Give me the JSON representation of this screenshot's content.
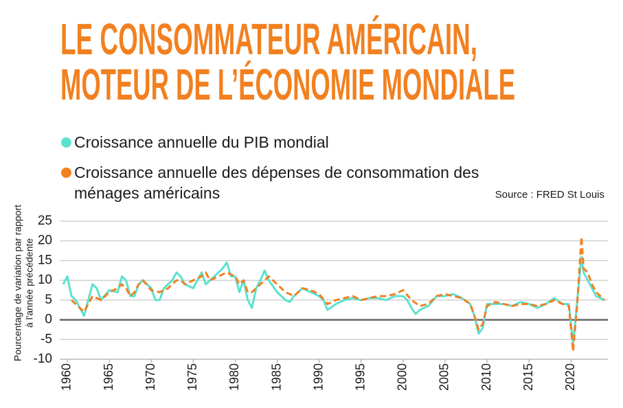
{
  "chart_data": {
    "type": "line",
    "title": [
      "LE CONSOMMATEUR AMÉRICAIN,",
      "MOTEUR DE L’ÉCONOMIE MONDIALE"
    ],
    "source": "Source : FRED St Louis",
    "ylabel": [
      "Pourcentage de variation par rapport",
      "à l'année précédente"
    ],
    "xlim": [
      1959.1,
      2024.4
    ],
    "xticks": [
      1960,
      1965,
      1970,
      1975,
      1980,
      1985,
      1990,
      1995,
      2000,
      2005,
      2010,
      2015,
      2020
    ],
    "ylim": [
      -10,
      25
    ],
    "yticks": [
      -10,
      -5,
      0,
      5,
      10,
      15,
      20,
      25
    ],
    "grid": true,
    "series": [
      {
        "name": "Croissance annuelle du PIB mondial",
        "color": "#5ce1cf",
        "style": "solid",
        "x": [
          1959.5,
          1960,
          1960.5,
          1961,
          1961.5,
          1962,
          1962.5,
          1963,
          1963.5,
          1964,
          1965,
          1966,
          1966.5,
          1967,
          1967.5,
          1968,
          1968.5,
          1969,
          1970,
          1970.5,
          1971,
          1971.5,
          1972,
          1972.5,
          1973,
          1973.5,
          1974,
          1975,
          1975.5,
          1976,
          1976.5,
          1977,
          1978,
          1978.5,
          1979,
          1979.5,
          1980,
          1980.5,
          1981,
          1981.5,
          1982,
          1982.5,
          1983,
          1983.5,
          1984,
          1985,
          1986,
          1986.5,
          1987,
          1988,
          1989,
          1990,
          1990.5,
          1991,
          1992,
          1993,
          1994,
          1995,
          1996,
          1997,
          1998,
          1999,
          2000,
          2000.5,
          2001,
          2001.5,
          2002,
          2003,
          2004,
          2005,
          2006,
          2007,
          2008,
          2008.5,
          2009,
          2009.5,
          2010,
          2011,
          2012,
          2013,
          2014,
          2015,
          2016,
          2017,
          2018,
          2019,
          2019.75,
          2020.25,
          2020.5,
          2020.75,
          2021.25,
          2021.5,
          2022,
          2022.5,
          2023,
          2023.5,
          2024
        ],
        "values": [
          9,
          11,
          6,
          5,
          3,
          1,
          5,
          9,
          8,
          5,
          7.5,
          7,
          11,
          10,
          6,
          6,
          9,
          10,
          8,
          5,
          5,
          8,
          9,
          10,
          12,
          11,
          9,
          8,
          10,
          12,
          9,
          10,
          12,
          13,
          14.5,
          11,
          11,
          7,
          10,
          5,
          3,
          8,
          10,
          12.5,
          10,
          7,
          5,
          4.5,
          6,
          8,
          7,
          6,
          5,
          2.5,
          4,
          5,
          5.5,
          5,
          5.5,
          5.5,
          5,
          6,
          6,
          5,
          3,
          1.5,
          2.5,
          3.5,
          6,
          6,
          6.5,
          5.5,
          4,
          1,
          -3.5,
          -2,
          4,
          4,
          4,
          3.5,
          4.5,
          4,
          3,
          4,
          5.5,
          4,
          4,
          -6,
          -1,
          5,
          16,
          12,
          10,
          8,
          6,
          5.5,
          5
        ]
      },
      {
        "name": "Croissance annuelle des dépenses de consommation des ménages américains",
        "color": "#f28020",
        "style": "dashed",
        "x": [
          1960.5,
          1961,
          1962,
          1962.5,
          1963,
          1964,
          1965,
          1966,
          1966.5,
          1967,
          1967.5,
          1968,
          1968.5,
          1969,
          1970,
          1971,
          1972,
          1973,
          1973.5,
          1974,
          1975,
          1976,
          1976.5,
          1977,
          1978,
          1979,
          1980,
          1980.5,
          1981,
          1981.5,
          1982,
          1983,
          1984,
          1985,
          1986,
          1987,
          1988,
          1989,
          1990,
          1991,
          1992,
          1993,
          1994,
          1995,
          1996,
          1997,
          1998,
          1999,
          2000,
          2001,
          2002,
          2003,
          2004,
          2005,
          2006,
          2007,
          2008,
          2008.5,
          2009,
          2009.5,
          2010,
          2011,
          2012,
          2013,
          2014,
          2015,
          2016,
          2017,
          2018,
          2019,
          2019.75,
          2020.25,
          2020.5,
          2020.75,
          2021.25,
          2021.5,
          2022,
          2022.5,
          2023,
          2023.5,
          2024
        ],
        "values": [
          5,
          4,
          2,
          4,
          6,
          5,
          7,
          8,
          9,
          8,
          6,
          7,
          9,
          10,
          7.5,
          7,
          8,
          10,
          10,
          9,
          10,
          11,
          12,
          10,
          11,
          12,
          11,
          9,
          10,
          7,
          7,
          9,
          11,
          9,
          7,
          6,
          8,
          7.5,
          6.5,
          4,
          5,
          5.5,
          6,
          5,
          5.5,
          6,
          6,
          6.5,
          7.5,
          5,
          3.5,
          4,
          6,
          6.5,
          6,
          5.5,
          4,
          1,
          -2.5,
          -1,
          3.5,
          4.5,
          4,
          3.5,
          4,
          4,
          3.5,
          4,
          5,
          4,
          3.5,
          -8,
          -2,
          4,
          21,
          13,
          12,
          9,
          7,
          6,
          5
        ]
      }
    ]
  }
}
